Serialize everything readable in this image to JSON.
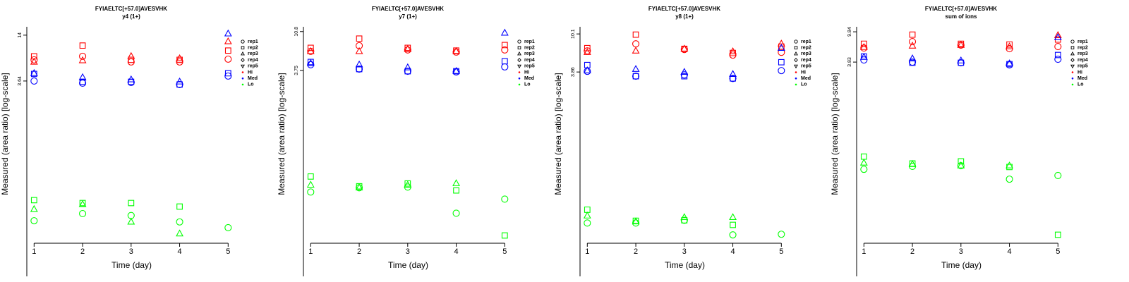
{
  "chart_data": [
    {
      "type": "scatter",
      "title": "FYIAELTC[+57.0]AVESVHK",
      "subtitle": "y4 (1+)",
      "xlabel": "Time (day)",
      "ylabel": "Measured (area ratio) [log-scale]",
      "x": [
        1,
        2,
        3,
        4,
        5
      ],
      "xlim": [
        0.85,
        5.17
      ],
      "xticks": [
        1,
        2,
        3,
        4,
        5
      ],
      "ylim": [
        0.031,
        17.9
      ],
      "yticks": [
        3.64,
        14
      ],
      "log_scale": true,
      "legend": {
        "reps": [
          {
            "name": "rep1",
            "shape": "circle"
          },
          {
            "name": "rep2",
            "shape": "square"
          },
          {
            "name": "rep3",
            "shape": "triangle"
          },
          {
            "name": "rep4",
            "shape": "diamond"
          },
          {
            "name": "rep5",
            "shape": "triangle-down"
          }
        ],
        "levels": [
          {
            "name": "Hi",
            "color": "#ff0000"
          },
          {
            "name": "Med",
            "color": "#0000ff"
          },
          {
            "name": "Lo",
            "color": "#00ff00"
          }
        ]
      },
      "series": [
        {
          "color": "#ff0000",
          "shape": "circle",
          "values": [
            6.78,
            7.52,
            6.37,
            6.37,
            6.92
          ]
        },
        {
          "color": "#ff0000",
          "shape": "square",
          "values": [
            7.52,
            10.3,
            6.78,
            6.78,
            8.9
          ]
        },
        {
          "color": "#ff0000",
          "shape": "triangle",
          "values": [
            6.37,
            6.64,
            7.52,
            7.06,
            11.6
          ]
        },
        {
          "color": "#0000ff",
          "shape": "circle",
          "values": [
            3.64,
            3.42,
            3.49,
            3.28,
            4.21
          ]
        },
        {
          "color": "#0000ff",
          "shape": "square",
          "values": [
            4.48,
            3.56,
            3.56,
            3.28,
            4.57
          ]
        },
        {
          "color": "#0000ff",
          "shape": "triangle",
          "values": [
            4.57,
            4.04,
            3.79,
            3.56,
            14.6
          ]
        },
        {
          "color": "#00ff00",
          "shape": "circle",
          "values": [
            0.06,
            0.074,
            0.07,
            0.058,
            0.049
          ]
        },
        {
          "color": "#00ff00",
          "shape": "square",
          "values": [
            0.11,
            0.101,
            0.101,
            0.091,
            null
          ]
        },
        {
          "color": "#00ff00",
          "shape": "triangle",
          "values": [
            0.084,
            0.097,
            0.058,
            0.041,
            null
          ]
        }
      ]
    },
    {
      "type": "scatter",
      "title": "FYIAELTC[+57.0]AVESVHK",
      "subtitle": "y7 (1+)",
      "xlabel": "Time (day)",
      "ylabel": "Measured (area ratio) [log-scale]",
      "x": [
        1,
        2,
        3,
        4,
        5
      ],
      "xlim": [
        0.85,
        5.17
      ],
      "xticks": [
        1,
        2,
        3,
        4,
        5
      ],
      "ylim": [
        0.034,
        12.3
      ],
      "yticks": [
        3.75,
        10.8
      ],
      "log_scale": true,
      "legend": {
        "reps": [
          {
            "name": "rep1",
            "shape": "circle"
          },
          {
            "name": "rep2",
            "shape": "square"
          },
          {
            "name": "rep3",
            "shape": "triangle"
          },
          {
            "name": "rep4",
            "shape": "diamond"
          },
          {
            "name": "rep5",
            "shape": "triangle-down"
          }
        ],
        "levels": [
          {
            "name": "Hi",
            "color": "#ff0000"
          },
          {
            "name": "Med",
            "color": "#0000ff"
          },
          {
            "name": "Lo",
            "color": "#00ff00"
          }
        ]
      },
      "series": [
        {
          "color": "#ff0000",
          "shape": "circle",
          "values": [
            6.3,
            7.35,
            6.55,
            6.18,
            6.55
          ]
        },
        {
          "color": "#ff0000",
          "shape": "square",
          "values": [
            6.93,
            8.91,
            6.93,
            6.43,
            7.48
          ]
        },
        {
          "color": "#ff0000",
          "shape": "triangle",
          "values": [
            6.3,
            6.3,
            6.67,
            6.3,
            null
          ]
        },
        {
          "color": "#0000ff",
          "shape": "circle",
          "values": [
            4.38,
            3.89,
            3.67,
            3.6,
            4.13
          ]
        },
        {
          "color": "#0000ff",
          "shape": "square",
          "values": [
            4.72,
            3.89,
            3.67,
            3.67,
            4.81
          ]
        },
        {
          "color": "#0000ff",
          "shape": "triangle",
          "values": [
            4.54,
            4.38,
            4.05,
            3.67,
            10.4
          ]
        },
        {
          "color": "#00ff00",
          "shape": "circle",
          "values": [
            0.137,
            0.154,
            0.157,
            0.077,
            0.113
          ]
        },
        {
          "color": "#00ff00",
          "shape": "square",
          "values": [
            0.209,
            0.16,
            0.173,
            0.143,
            0.042
          ]
        },
        {
          "color": "#00ff00",
          "shape": "triangle",
          "values": [
            0.166,
            0.154,
            0.166,
            0.173,
            null
          ]
        }
      ]
    },
    {
      "type": "scatter",
      "title": "FYIAELTC[+57.0]AVESVHK",
      "subtitle": "y8 (1+)",
      "xlabel": "Time (day)",
      "ylabel": "Measured (area ratio) [log-scale]",
      "x": [
        1,
        2,
        3,
        4,
        5
      ],
      "xlim": [
        0.85,
        5.17
      ],
      "xticks": [
        1,
        2,
        3,
        4,
        5
      ],
      "ylim": [
        0.051,
        12.1
      ],
      "yticks": [
        3.86,
        10.1
      ],
      "log_scale": true,
      "legend": {
        "reps": [
          {
            "name": "rep1",
            "shape": "circle"
          },
          {
            "name": "rep2",
            "shape": "square"
          },
          {
            "name": "rep3",
            "shape": "triangle"
          },
          {
            "name": "rep4",
            "shape": "diamond"
          },
          {
            "name": "rep5",
            "shape": "triangle-down"
          }
        ],
        "levels": [
          {
            "name": "Hi",
            "color": "#ff0000"
          },
          {
            "name": "Med",
            "color": "#0000ff"
          },
          {
            "name": "Lo",
            "color": "#00ff00"
          }
        ]
      },
      "series": [
        {
          "color": "#ff0000",
          "shape": "circle",
          "values": [
            6.58,
            7.87,
            6.82,
            5.92,
            6.35
          ]
        },
        {
          "color": "#ff0000",
          "shape": "square",
          "values": [
            7.06,
            9.92,
            6.93,
            6.24,
            7.33
          ]
        },
        {
          "color": "#ff0000",
          "shape": "triangle",
          "values": [
            6.35,
            6.58,
            6.93,
            6.47,
            7.87
          ]
        },
        {
          "color": "#0000ff",
          "shape": "circle",
          "values": [
            3.93,
            3.47,
            3.59,
            3.28,
            4.0
          ]
        },
        {
          "color": "#0000ff",
          "shape": "square",
          "values": [
            4.6,
            3.47,
            3.47,
            3.28,
            4.94
          ]
        },
        {
          "color": "#0000ff",
          "shape": "triangle",
          "values": [
            4.0,
            4.14,
            3.85,
            3.65,
            7.06
          ]
        },
        {
          "color": "#00ff00",
          "shape": "circle",
          "values": [
            0.085,
            0.085,
            0.091,
            0.063,
            0.064
          ]
        },
        {
          "color": "#00ff00",
          "shape": "square",
          "values": [
            0.119,
            0.09,
            0.091,
            0.081,
            null
          ]
        },
        {
          "color": "#00ff00",
          "shape": "triangle",
          "values": [
            0.102,
            0.088,
            0.098,
            0.098,
            null
          ]
        }
      ]
    },
    {
      "type": "scatter",
      "title": "FYIAELTC[+57.0]AVESVHK",
      "subtitle": "sum of ions",
      "xlabel": "Time (day)",
      "ylabel": "Measured (area ratio) [log-scale]",
      "x": [
        1,
        2,
        3,
        4,
        5
      ],
      "xlim": [
        0.85,
        5.17
      ],
      "xticks": [
        1,
        2,
        3,
        4,
        5
      ],
      "ylim": [
        0.0136,
        11.5
      ],
      "yticks": [
        3.83,
        9.84
      ],
      "log_scale": true,
      "legend": {
        "reps": [
          {
            "name": "rep1",
            "shape": "circle"
          },
          {
            "name": "rep2",
            "shape": "square"
          },
          {
            "name": "rep3",
            "shape": "triangle"
          },
          {
            "name": "rep4",
            "shape": "diamond"
          },
          {
            "name": "rep5",
            "shape": "triangle-down"
          }
        ],
        "levels": [
          {
            "name": "Hi",
            "color": "#ff0000"
          },
          {
            "name": "Med",
            "color": "#0000ff"
          },
          {
            "name": "Lo",
            "color": "#00ff00"
          }
        ]
      },
      "series": [
        {
          "color": "#ff0000",
          "shape": "circle",
          "values": [
            5.94,
            7.24,
            6.49,
            5.81,
            6.21
          ]
        },
        {
          "color": "#ff0000",
          "shape": "square",
          "values": [
            6.78,
            9.01,
            6.78,
            6.63,
            7.73
          ]
        },
        {
          "color": "#ff0000",
          "shape": "triangle",
          "values": [
            6.07,
            6.34,
            6.49,
            6.21,
            8.81
          ]
        },
        {
          "color": "#0000ff",
          "shape": "circle",
          "values": [
            4.09,
            3.83,
            3.75,
            3.51,
            4.18
          ]
        },
        {
          "color": "#0000ff",
          "shape": "square",
          "values": [
            4.56,
            3.75,
            3.75,
            3.59,
            4.78
          ]
        },
        {
          "color": "#0000ff",
          "shape": "triangle",
          "values": [
            4.47,
            4.27,
            4.0,
            3.66,
            8.26
          ]
        },
        {
          "color": "#00ff00",
          "shape": "circle",
          "values": [
            0.136,
            0.149,
            0.152,
            0.1,
            0.112
          ]
        },
        {
          "color": "#00ff00",
          "shape": "square",
          "values": [
            0.202,
            0.163,
            0.174,
            0.146,
            0.0177
          ]
        },
        {
          "color": "#00ff00",
          "shape": "triangle",
          "values": [
            0.166,
            0.159,
            0.152,
            0.152,
            null
          ]
        }
      ]
    }
  ]
}
